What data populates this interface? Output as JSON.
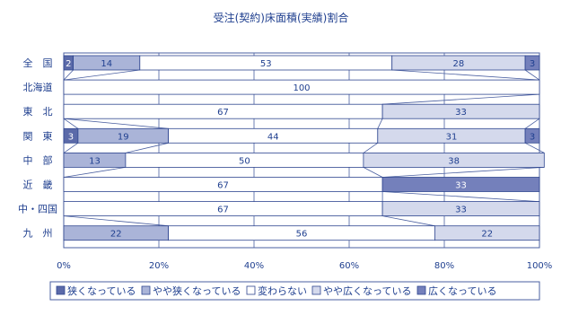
{
  "chart_data": {
    "type": "bar",
    "stacked": "percent",
    "orientation": "horizontal",
    "title": "受注(契約)床面積(実績)割合",
    "categories": [
      "全　国",
      "北海道",
      "東　北",
      "関　東",
      "中　部",
      "近　畿",
      "中・四国",
      "九　州"
    ],
    "series": [
      {
        "name": "狭くなっている",
        "values": [
          2,
          0,
          0,
          3,
          0,
          0,
          0,
          0
        ],
        "color": "#5b6aa9"
      },
      {
        "name": "やや狭くなっている",
        "values": [
          14,
          0,
          0,
          19,
          13,
          0,
          0,
          22
        ],
        "color": "#aab4d8"
      },
      {
        "name": "変わらない",
        "values": [
          53,
          100,
          67,
          44,
          50,
          67,
          67,
          56
        ],
        "color": "#ffffff"
      },
      {
        "name": "やや広くなっている",
        "values": [
          28,
          0,
          33,
          31,
          38,
          0,
          33,
          22
        ],
        "color": "#d4d9ec"
      },
      {
        "name": "広くなっている",
        "values": [
          3,
          0,
          0,
          3,
          0,
          33,
          0,
          0
        ],
        "color": "#7480bb"
      }
    ],
    "xlim": [
      0,
      100
    ],
    "x_ticks": [
      "0%",
      "20%",
      "40%",
      "60%",
      "80%",
      "100%"
    ],
    "legend_position": "bottom",
    "grid": true
  }
}
